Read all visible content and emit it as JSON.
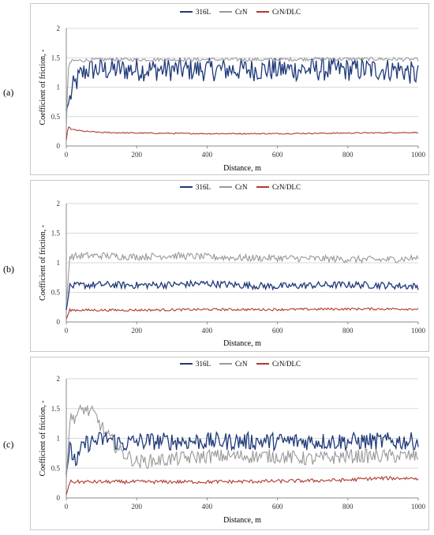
{
  "colors": {
    "316L": "#1f3a7a",
    "CrN": "#999999",
    "CrN/DLC": "#b03a2e",
    "grid": "#d9d9d9",
    "axis": "#888888"
  },
  "chart_data": [
    {
      "type": "line",
      "panel_label": "(a)",
      "xlabel": "Distance, m",
      "ylabel": "Coefficient of friction, -",
      "xlim": [
        0,
        1000
      ],
      "ylim": [
        0,
        2
      ],
      "x_ticks": [
        "0",
        "200",
        "400",
        "600",
        "800",
        "1000"
      ],
      "y_ticks": [
        "0",
        "0.5",
        "1",
        "1.5",
        "2"
      ],
      "grid": "horizontal",
      "legend": "top-center",
      "series": [
        {
          "name": "316L",
          "x": [
            0,
            10,
            20,
            40,
            60,
            100,
            150,
            200,
            250,
            300,
            350,
            400,
            450,
            500,
            550,
            600,
            650,
            700,
            750,
            800,
            850,
            900,
            950,
            1000
          ],
          "values": [
            0.6,
            0.8,
            1.0,
            1.2,
            1.3,
            1.3,
            1.3,
            1.3,
            1.3,
            1.3,
            1.3,
            1.3,
            1.3,
            1.3,
            1.3,
            1.3,
            1.3,
            1.3,
            1.3,
            1.3,
            1.3,
            1.3,
            1.3,
            1.2
          ],
          "amplitude": 0.2
        },
        {
          "name": "CrN",
          "x": [
            0,
            5,
            10,
            20,
            100,
            200,
            300,
            400,
            500,
            600,
            700,
            800,
            900,
            1000
          ],
          "values": [
            0.3,
            1.3,
            1.42,
            1.45,
            1.47,
            1.47,
            1.47,
            1.47,
            1.47,
            1.47,
            1.48,
            1.48,
            1.48,
            1.47
          ],
          "amplitude": 0.03
        },
        {
          "name": "CrN/DLC",
          "x": [
            0,
            5,
            15,
            50,
            100,
            200,
            400,
            600,
            800,
            1000
          ],
          "values": [
            0.1,
            0.33,
            0.28,
            0.25,
            0.23,
            0.22,
            0.21,
            0.21,
            0.22,
            0.23
          ],
          "amplitude": 0.01
        }
      ]
    },
    {
      "type": "line",
      "panel_label": "(b)",
      "xlabel": "Distance, m",
      "ylabel": "Coefficient of friction, -",
      "xlim": [
        0,
        1000
      ],
      "ylim": [
        0,
        2
      ],
      "x_ticks": [
        "0",
        "200",
        "400",
        "600",
        "800",
        "1000"
      ],
      "y_ticks": [
        "0",
        "0.5",
        "1",
        "1.5",
        "2"
      ],
      "grid": "horizontal",
      "legend": "top-center",
      "series": [
        {
          "name": "316L",
          "x": [
            0,
            10,
            50,
            100,
            200,
            300,
            400,
            500,
            600,
            700,
            800,
            900,
            1000
          ],
          "values": [
            0.2,
            0.6,
            0.62,
            0.63,
            0.62,
            0.63,
            0.65,
            0.62,
            0.6,
            0.62,
            0.63,
            0.62,
            0.6
          ],
          "amplitude": 0.06
        },
        {
          "name": "CrN",
          "x": [
            0,
            10,
            50,
            100,
            200,
            300,
            400,
            500,
            600,
            700,
            800,
            900,
            1000
          ],
          "values": [
            0.3,
            1.1,
            1.12,
            1.12,
            1.1,
            1.12,
            1.1,
            1.08,
            1.08,
            1.07,
            1.06,
            1.05,
            1.08
          ],
          "amplitude": 0.06
        },
        {
          "name": "CrN/DLC",
          "x": [
            0,
            10,
            100,
            200,
            400,
            600,
            800,
            1000
          ],
          "values": [
            0.05,
            0.2,
            0.2,
            0.2,
            0.21,
            0.21,
            0.22,
            0.22
          ],
          "amplitude": 0.02
        }
      ]
    },
    {
      "type": "line",
      "panel_label": "(c)",
      "xlabel": "Distance, m",
      "ylabel": "Coefficient of friction, -",
      "xlim": [
        0,
        1000
      ],
      "ylim": [
        0,
        2
      ],
      "x_ticks": [
        "0",
        "200",
        "400",
        "600",
        "800",
        "1000"
      ],
      "y_ticks": [
        "0",
        "0.5",
        "1",
        "1.5",
        "2"
      ],
      "grid": "horizontal",
      "legend": "top-center",
      "series": [
        {
          "name": "316L",
          "x": [
            0,
            10,
            30,
            50,
            80,
            120,
            160,
            200,
            300,
            400,
            500,
            600,
            700,
            800,
            900,
            1000
          ],
          "values": [
            0.4,
            0.8,
            0.6,
            0.9,
            0.95,
            1.0,
            0.9,
            0.95,
            0.95,
            0.95,
            0.95,
            0.95,
            0.95,
            0.95,
            0.95,
            0.95
          ],
          "amplitude": 0.15
        },
        {
          "name": "CrN",
          "x": [
            0,
            10,
            30,
            50,
            80,
            110,
            150,
            200,
            300,
            400,
            500,
            600,
            700,
            800,
            900,
            1000
          ],
          "values": [
            0.3,
            1.3,
            1.4,
            1.5,
            1.4,
            1.1,
            0.8,
            0.6,
            0.65,
            0.7,
            0.7,
            0.7,
            0.65,
            0.7,
            0.7,
            0.7
          ],
          "amplitude": 0.12
        },
        {
          "name": "CrN/DLC",
          "x": [
            0,
            10,
            100,
            200,
            400,
            600,
            800,
            850,
            900,
            950,
            1000
          ],
          "values": [
            0.05,
            0.27,
            0.27,
            0.27,
            0.27,
            0.28,
            0.3,
            0.32,
            0.33,
            0.33,
            0.33
          ],
          "amplitude": 0.03
        }
      ]
    }
  ]
}
